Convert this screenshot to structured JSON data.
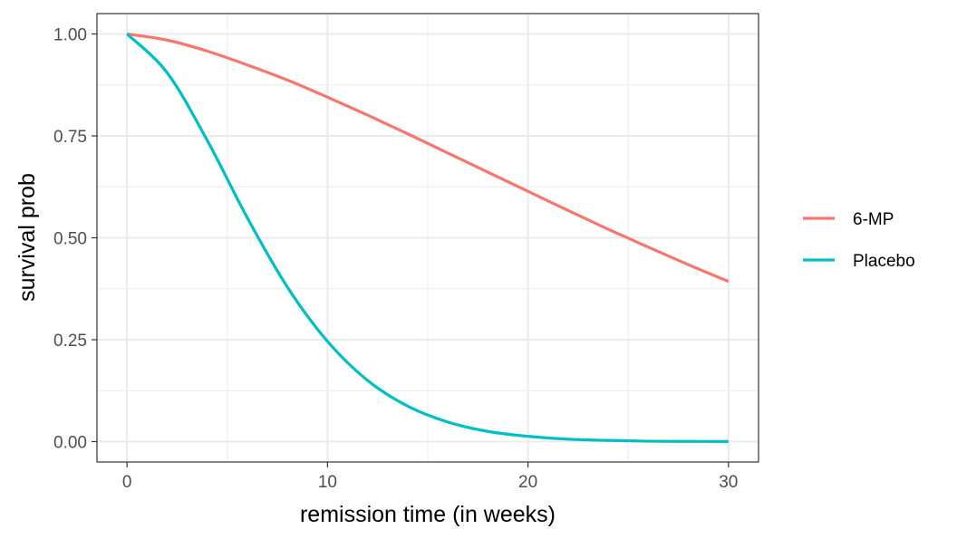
{
  "chart_data": {
    "type": "line",
    "title": "",
    "xlabel": "remission time (in weeks)",
    "ylabel": "survival prob",
    "xlim": [
      -1.5,
      31.5
    ],
    "ylim": [
      -0.05,
      1.05
    ],
    "x_ticks": [
      0,
      10,
      20,
      30
    ],
    "x_tick_labels": [
      "0",
      "10",
      "20",
      "30"
    ],
    "y_ticks": [
      0,
      0.25,
      0.5,
      0.75,
      1
    ],
    "y_tick_labels": [
      "0.00",
      "0.25",
      "0.50",
      "0.75",
      "1.00"
    ],
    "grid": true,
    "legend_position": "right",
    "x": [
      0,
      2,
      4,
      6,
      8,
      10,
      12,
      14,
      16,
      18,
      20,
      22,
      24,
      26,
      28,
      30
    ],
    "series": [
      {
        "name": "6-MP",
        "color": "#F8766D",
        "values": [
          1.0,
          0.985,
          0.958,
          0.924,
          0.887,
          0.845,
          0.801,
          0.755,
          0.708,
          0.661,
          0.614,
          0.567,
          0.521,
          0.477,
          0.434,
          0.393
        ]
      },
      {
        "name": "Placebo",
        "color": "#00BFC4",
        "values": [
          1.0,
          0.905,
          0.739,
          0.549,
          0.379,
          0.246,
          0.15,
          0.087,
          0.048,
          0.025,
          0.013,
          0.006,
          0.003,
          0.001,
          0.0005,
          0.0002
        ]
      }
    ]
  }
}
